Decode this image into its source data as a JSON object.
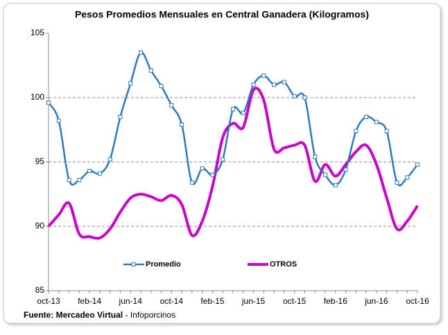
{
  "chart_data": {
    "type": "line",
    "title": "Pesos Promedios Mensuales en Central Ganadera (Kilogramos)",
    "source": "Fuente: Mercadeo Virtual",
    "source_note": "- Infoporcinos",
    "categories": [
      "oct-13",
      null,
      null,
      null,
      "feb-14",
      null,
      null,
      null,
      "jun-14",
      null,
      null,
      null,
      "oct-14",
      null,
      null,
      null,
      "feb-15",
      null,
      null,
      null,
      "jun-15",
      null,
      null,
      null,
      "oct-15",
      null,
      null,
      null,
      "feb-16",
      null,
      null,
      null,
      "jun-16",
      null,
      null,
      null,
      "oct-16"
    ],
    "series": [
      {
        "name": "Promedio",
        "color": "#2e78bd",
        "marker": "square",
        "values": [
          99.6,
          98.2,
          93.6,
          93.6,
          94.3,
          94.1,
          95.2,
          98.5,
          101.1,
          103.5,
          102.1,
          100.9,
          99.4,
          97.9,
          93.4,
          94.5,
          94.0,
          95.2,
          99.1,
          98.8,
          101.0,
          101.7,
          101.0,
          101.2,
          100.1,
          100.0,
          95.4,
          94.0,
          93.2,
          94.4,
          97.4,
          98.5,
          98.1,
          97.4,
          93.4,
          93.8,
          94.8
        ]
      },
      {
        "name": "OTROS",
        "color": "#cc00cc",
        "marker": "none",
        "values": [
          90.0,
          90.9,
          91.8,
          89.4,
          89.2,
          89.1,
          89.8,
          91.1,
          92.2,
          92.5,
          92.3,
          92.0,
          92.4,
          91.7,
          89.3,
          90.4,
          93.1,
          96.9,
          98.0,
          97.7,
          100.6,
          99.8,
          96.0,
          96.1,
          96.3,
          96.3,
          93.5,
          94.8,
          93.9,
          94.8,
          95.8,
          96.3,
          94.8,
          92.2,
          89.8,
          90.4,
          91.6
        ]
      }
    ],
    "ylim": [
      85,
      105
    ],
    "yticks": [
      85,
      90,
      95,
      100,
      105
    ],
    "grid": true,
    "legend": "bottom"
  }
}
